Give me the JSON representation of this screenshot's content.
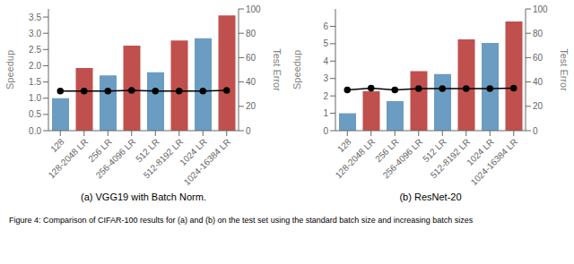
{
  "chart_data": [
    {
      "type": "bar",
      "title": "(a) VGG19 with Batch Norm.",
      "categories": [
        "128",
        "128-2048 LR",
        "256 LR",
        "256-4096 LR",
        "512 LR",
        "512-8192 LR",
        "1024 LR",
        "1024-16384 LR"
      ],
      "ylabel": "Speedup",
      "y2label": "Test Error",
      "series": [
        {
          "color": "#6b9dc2",
          "values": [
            1.0,
            null,
            1.7,
            null,
            1.8,
            null,
            2.85,
            null
          ]
        },
        {
          "color": "#c0504d",
          "values": [
            null,
            1.93,
            null,
            2.62,
            null,
            2.78,
            null,
            3.55
          ]
        },
        {
          "type": "line",
          "axis": "y2",
          "color": "#000000",
          "marker": "circle",
          "values": [
            32.5,
            32.5,
            32.5,
            33.0,
            32.5,
            32.5,
            32.5,
            33.0
          ]
        }
      ],
      "ylim": [
        0,
        3.75
      ],
      "yticks": [
        {
          "value": 0,
          "label": "0.0"
        },
        0.5,
        {
          "value": 1,
          "label": "1.0"
        },
        1.5,
        {
          "value": 2,
          "label": "2.0"
        },
        2.5,
        {
          "value": 3,
          "label": "3.0"
        },
        3.5
      ],
      "y2lim": [
        0,
        100
      ],
      "y2ticks": [
        0,
        20,
        40,
        60,
        80,
        100
      ]
    },
    {
      "type": "bar",
      "title": "(b) ResNet-20",
      "categories": [
        "128",
        "128-2048 LR",
        "256 LR",
        "256-4096 LR",
        "512 LR",
        "512-8192 LR",
        "1024 LR",
        "1024-16384 LR"
      ],
      "ylabel": "Speedup",
      "y2label": "Test Error",
      "series": [
        {
          "color": "#6b9dc2",
          "values": [
            1.0,
            null,
            1.7,
            null,
            3.25,
            null,
            5.05,
            null
          ]
        },
        {
          "color": "#c0504d",
          "values": [
            null,
            2.27,
            null,
            3.42,
            null,
            5.25,
            null,
            6.28
          ]
        },
        {
          "type": "line",
          "axis": "y2",
          "color": "#000000",
          "marker": "circle",
          "values": [
            33.5,
            35.0,
            33.5,
            34.5,
            34.5,
            34.5,
            34.5,
            35.0
          ]
        }
      ],
      "ylim": [
        0,
        7.0
      ],
      "yticks": [
        0,
        1,
        2,
        3,
        4,
        5,
        6
      ],
      "y2lim": [
        0,
        100
      ],
      "y2ticks": [
        0,
        20,
        40,
        60,
        80,
        100
      ]
    }
  ],
  "caption": "Figure 4: Comparison of CIFAR-100 results for (a) and (b) on the test set using the standard batch size and increasing batch sizes"
}
